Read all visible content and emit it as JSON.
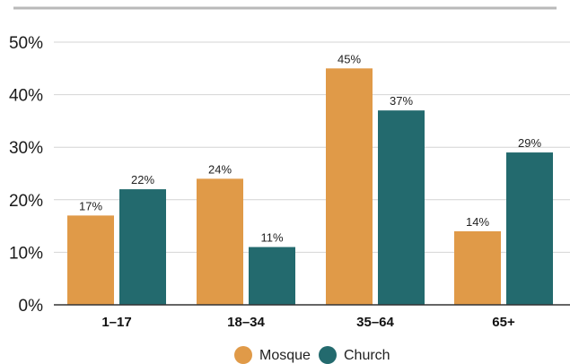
{
  "chart_data": {
    "type": "bar",
    "categories": [
      "1–17",
      "18–34",
      "35–64",
      "65+"
    ],
    "series": [
      {
        "name": "Mosque",
        "values": [
          17,
          24,
          45,
          14
        ],
        "color": "#e09a48"
      },
      {
        "name": "Church",
        "values": [
          22,
          11,
          37,
          29
        ],
        "color": "#236a6e"
      }
    ],
    "value_suffix": "%",
    "ylim": [
      0,
      50
    ],
    "yticks": [
      0,
      10,
      20,
      30,
      40,
      50
    ],
    "ytick_labels": [
      "0%",
      "10%",
      "20%",
      "30%",
      "40%",
      "50%"
    ],
    "grid": true,
    "legend_position": "bottom-center",
    "title": "",
    "xlabel": "",
    "ylabel": ""
  },
  "colors": {
    "top_rule": "#b9b9b9",
    "grid": "#d4d4d4",
    "axis": "#333333"
  }
}
